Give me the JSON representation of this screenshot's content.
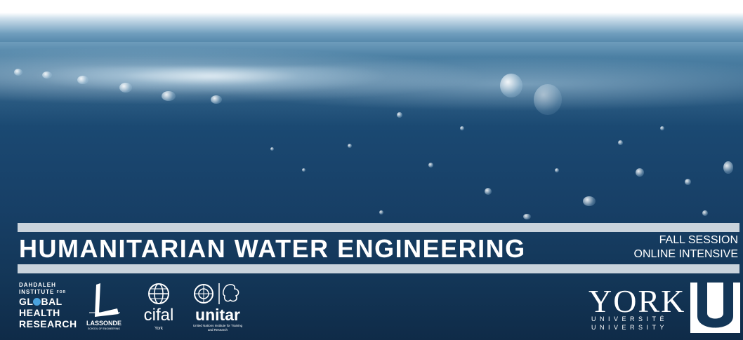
{
  "banner": {
    "title": "HUMANITARIAN WATER ENGINEERING",
    "session_line1": "FALL SESSION",
    "session_line2": "ONLINE INTENSIVE"
  },
  "logos": {
    "dahdaleh": {
      "line1": "DAHDALEH",
      "line2": "INSTITUTE",
      "for": "FOR",
      "global_prefix": "GL",
      "global_suffix": "BAL",
      "health": "HEALTH",
      "research": "RESEARCH"
    },
    "lassonde": {
      "name": "LASSONDE",
      "sub": "SCHOOL OF ENGINEERING"
    },
    "cifal": {
      "name": "cifal",
      "city": "York"
    },
    "unitar": {
      "name": "unitar",
      "sub": "United Nations Institute for Training and Research"
    },
    "york": {
      "name": "YORK",
      "line_fr": "UNIVERSITÉ",
      "line_en": "UNIVERSITY",
      "mark": "U"
    }
  },
  "colors": {
    "water_deep": "#133657",
    "bar": "#c9d3dc",
    "text": "#ffffff",
    "globe_accent": "#4aa3df"
  }
}
